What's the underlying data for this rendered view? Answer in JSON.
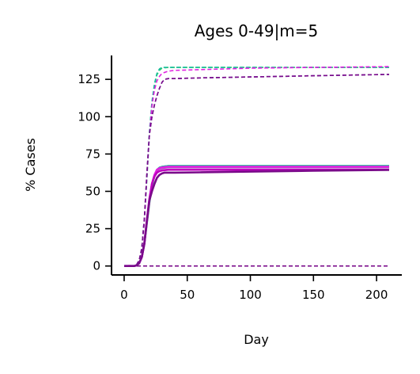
{
  "chart_data": {
    "type": "line",
    "title": "Ages 0-49|m=5",
    "xlabel": "Day",
    "ylabel": "% Cases",
    "xlim": [
      -10,
      220
    ],
    "ylim": [
      -6,
      141
    ],
    "xticks": [
      0,
      50,
      100,
      150,
      200
    ],
    "yticks": [
      0,
      25,
      50,
      75,
      100,
      125
    ],
    "grid": false,
    "legend": "none",
    "series": [
      {
        "style": "solid",
        "color": "#2ecc71",
        "width": 2.2,
        "x": [
          0,
          8,
          10,
          12,
          14,
          16,
          18,
          20,
          22,
          24,
          26,
          28,
          30,
          35,
          40,
          60,
          100,
          150,
          210
        ],
        "y": [
          0,
          0,
          0.5,
          2,
          6,
          14,
          28,
          42,
          53,
          60,
          64,
          65.5,
          66.5,
          67,
          67,
          67,
          67,
          67,
          67
        ]
      },
      {
        "style": "solid",
        "color": "#1abc9c",
        "width": 2.2,
        "x": [
          0,
          8,
          10,
          12,
          14,
          16,
          18,
          20,
          22,
          24,
          26,
          28,
          30,
          35,
          40,
          60,
          100,
          150,
          210
        ],
        "y": [
          0,
          0,
          0.5,
          2,
          6,
          15,
          29,
          43,
          54,
          61,
          64.5,
          66,
          66.5,
          67,
          67,
          67,
          67,
          67,
          67
        ]
      },
      {
        "style": "solid",
        "color": "#9b59b6",
        "width": 2.2,
        "x": [
          0,
          8,
          10,
          12,
          14,
          16,
          18,
          20,
          22,
          24,
          26,
          28,
          30,
          35,
          40,
          60,
          100,
          150,
          210
        ],
        "y": [
          0,
          0,
          0.5,
          2,
          6,
          15,
          30,
          44,
          55,
          61,
          64,
          65,
          65.5,
          66,
          66,
          66,
          66,
          66,
          66
        ]
      },
      {
        "style": "solid",
        "color": "#e020e0",
        "width": 2.6,
        "x": [
          0,
          8,
          10,
          12,
          14,
          16,
          18,
          20,
          22,
          24,
          26,
          28,
          30,
          35,
          40,
          60,
          100,
          150,
          210
        ],
        "y": [
          0,
          0,
          0.5,
          2,
          6,
          15,
          30,
          44,
          55,
          61,
          64.5,
          65.5,
          66,
          66.5,
          66.5,
          66.5,
          66.5,
          66.5,
          66.5
        ]
      },
      {
        "style": "solid",
        "color": "#c000c0",
        "width": 2.6,
        "x": [
          0,
          8,
          10,
          12,
          14,
          16,
          18,
          20,
          22,
          24,
          26,
          28,
          30,
          35,
          40,
          60,
          100,
          150,
          210
        ],
        "y": [
          0,
          0,
          0.5,
          2,
          6,
          15,
          31,
          45,
          55,
          60,
          62.5,
          63.5,
          64,
          64.5,
          64.5,
          64.5,
          64.5,
          64.5,
          64.5
        ]
      },
      {
        "style": "solid",
        "color": "#7a0a8a",
        "width": 2.6,
        "x": [
          0,
          8,
          10,
          12,
          14,
          16,
          18,
          20,
          22,
          24,
          26,
          28,
          30,
          32,
          35,
          40,
          60,
          100,
          150,
          210
        ],
        "y": [
          0,
          0,
          0.5,
          2,
          6,
          15,
          30,
          44,
          50,
          55,
          59,
          61,
          62,
          62.5,
          62.5,
          62.5,
          62.7,
          63.2,
          63.8,
          64.3
        ]
      },
      {
        "style": "dashed",
        "color": "#2ecc71",
        "width": 1.6,
        "x": [
          0,
          8,
          10,
          12,
          14,
          16,
          18,
          20,
          22,
          24,
          26,
          28,
          30,
          35,
          40,
          60,
          100,
          150,
          210
        ],
        "y": [
          0,
          0,
          1,
          4,
          12,
          30,
          58,
          88,
          108,
          121,
          128,
          131,
          132.5,
          133,
          133,
          133,
          133,
          133,
          133
        ]
      },
      {
        "style": "dashed",
        "color": "#1abc9c",
        "width": 1.6,
        "x": [
          0,
          8,
          10,
          12,
          14,
          16,
          18,
          20,
          22,
          24,
          26,
          28,
          30,
          35,
          40,
          60,
          100,
          150,
          210
        ],
        "y": [
          0,
          0,
          1,
          4,
          12,
          31,
          60,
          90,
          110,
          122,
          129,
          132,
          133,
          133,
          133,
          133,
          133,
          133,
          133
        ]
      },
      {
        "style": "dashed",
        "color": "#e020e0",
        "width": 1.6,
        "x": [
          0,
          8,
          10,
          12,
          14,
          16,
          18,
          20,
          22,
          24,
          26,
          28,
          30,
          35,
          40,
          60,
          100,
          150,
          210
        ],
        "y": [
          0,
          0,
          1,
          4,
          12,
          30,
          60,
          88,
          107,
          118,
          124,
          127,
          129,
          130.5,
          131,
          131.5,
          132.5,
          133,
          133.5
        ]
      },
      {
        "style": "dashed",
        "color": "#6a3ab0",
        "width": 1.6,
        "x": [
          0,
          8,
          10,
          12,
          14,
          16,
          18,
          20,
          22,
          24,
          26,
          28,
          30,
          32,
          35,
          40,
          60,
          100,
          150,
          210
        ],
        "y": [
          0,
          0,
          1,
          4,
          12,
          32,
          62,
          88,
          100,
          108,
          114,
          119,
          123,
          125,
          125.5,
          125.5,
          126,
          126.6,
          127.4,
          128.3
        ]
      },
      {
        "style": "dashed",
        "color": "#7a0a8a",
        "width": 1.6,
        "x": [
          0,
          8,
          10,
          12,
          14,
          16,
          18,
          20,
          22,
          24,
          26,
          28,
          30,
          32,
          35,
          40,
          60,
          100,
          150,
          210
        ],
        "y": [
          0,
          0,
          1,
          4,
          12,
          32,
          62,
          88,
          100,
          108,
          114,
          119,
          123,
          125,
          125.5,
          125.5,
          126,
          126.6,
          127.4,
          128.3
        ]
      },
      {
        "style": "dashed",
        "color": "#7a0a8a",
        "width": 1.6,
        "x": [
          0,
          210
        ],
        "y": [
          0,
          0
        ]
      }
    ]
  }
}
